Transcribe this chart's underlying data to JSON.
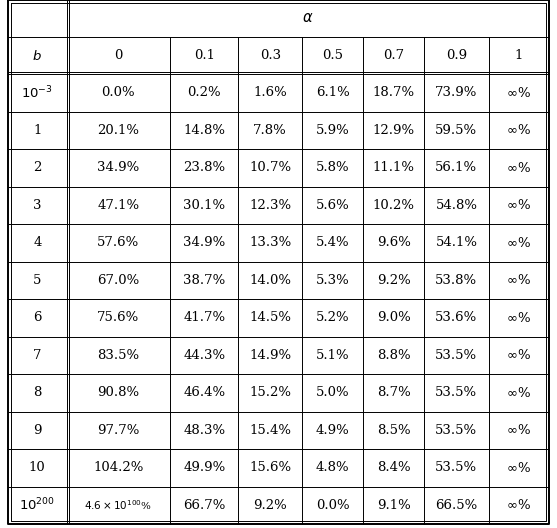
{
  "alpha_label": "α",
  "col_headers_alpha": [
    "0",
    "0.1",
    "0.3",
    "0.5",
    "0.7",
    "0.9",
    "1"
  ],
  "rows": [
    {
      "b": "$10^{-3}$",
      "vals": [
        "0.0%",
        "0.2%",
        "1.6%",
        "6.1%",
        "18.7%",
        "73.9%",
        "$\\infty$%"
      ]
    },
    {
      "b": "1",
      "vals": [
        "20.1%",
        "14.8%",
        "7.8%",
        "5.9%",
        "12.9%",
        "59.5%",
        "$\\infty$%"
      ]
    },
    {
      "b": "2",
      "vals": [
        "34.9%",
        "23.8%",
        "10.7%",
        "5.8%",
        "11.1%",
        "56.1%",
        "$\\infty$%"
      ]
    },
    {
      "b": "3",
      "vals": [
        "47.1%",
        "30.1%",
        "12.3%",
        "5.6%",
        "10.2%",
        "54.8%",
        "$\\infty$%"
      ]
    },
    {
      "b": "4",
      "vals": [
        "57.6%",
        "34.9%",
        "13.3%",
        "5.4%",
        "9.6%",
        "54.1%",
        "$\\infty$%"
      ]
    },
    {
      "b": "5",
      "vals": [
        "67.0%",
        "38.7%",
        "14.0%",
        "5.3%",
        "9.2%",
        "53.8%",
        "$\\infty$%"
      ]
    },
    {
      "b": "6",
      "vals": [
        "75.6%",
        "41.7%",
        "14.5%",
        "5.2%",
        "9.0%",
        "53.6%",
        "$\\infty$%"
      ]
    },
    {
      "b": "7",
      "vals": [
        "83.5%",
        "44.3%",
        "14.9%",
        "5.1%",
        "8.8%",
        "53.5%",
        "$\\infty$%"
      ]
    },
    {
      "b": "8",
      "vals": [
        "90.8%",
        "46.4%",
        "15.2%",
        "5.0%",
        "8.7%",
        "53.5%",
        "$\\infty$%"
      ]
    },
    {
      "b": "9",
      "vals": [
        "97.7%",
        "48.3%",
        "15.4%",
        "4.9%",
        "8.5%",
        "53.5%",
        "$\\infty$%"
      ]
    },
    {
      "b": "10",
      "vals": [
        "104.2%",
        "49.9%",
        "15.6%",
        "4.8%",
        "8.4%",
        "53.5%",
        "$\\infty$%"
      ]
    },
    {
      "b": "$10^{200}$",
      "vals": [
        "$4.6\\times10^{100}$%",
        "66.7%",
        "9.2%",
        "0.0%",
        "9.1%",
        "66.5%",
        "$\\infty$%"
      ]
    }
  ],
  "bg_color": "#ffffff",
  "font_size": 9.5,
  "small_font_size": 7.5
}
